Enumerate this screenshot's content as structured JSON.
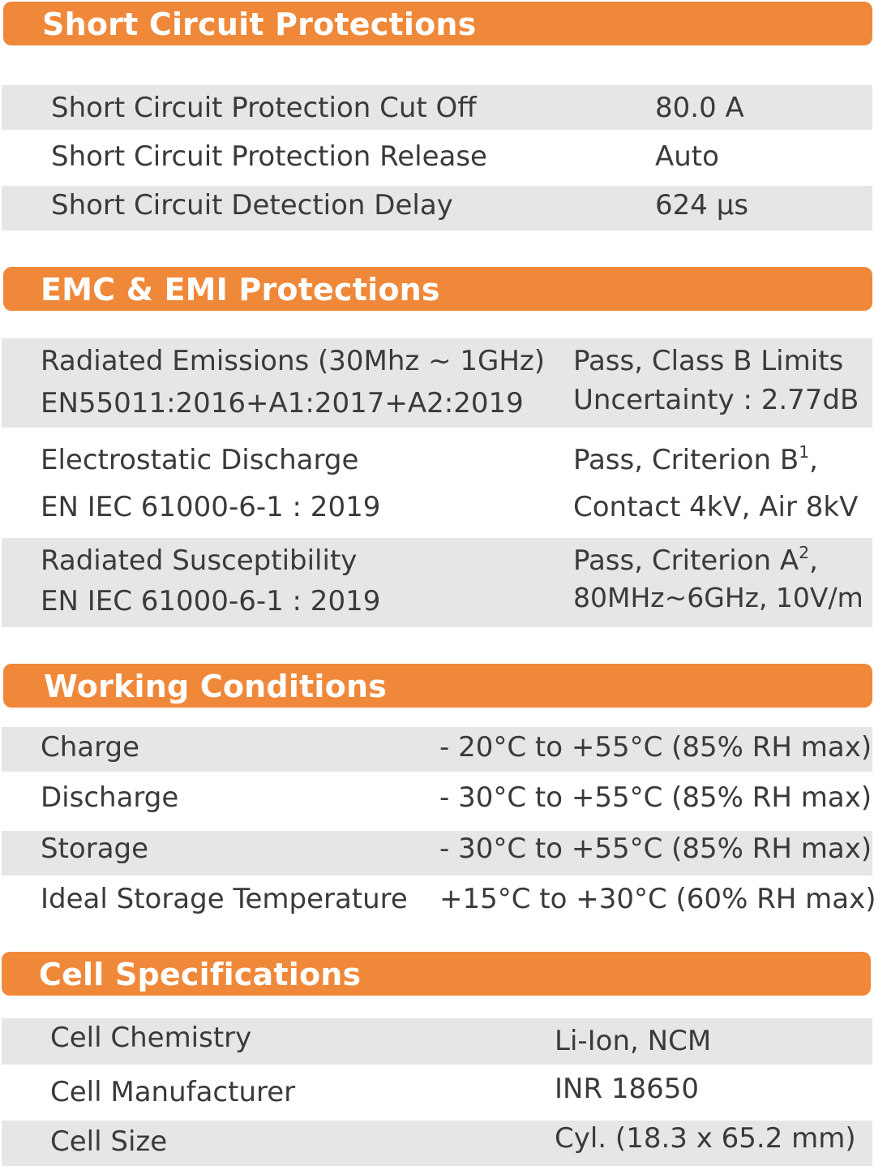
{
  "sections": {
    "short_circuit": {
      "title": "Short Circuit Protections",
      "rows": [
        {
          "label": "Short Circuit Protection Cut Off",
          "value": "80.0 A"
        },
        {
          "label": "Short Circuit Protection Release",
          "value": "Auto"
        },
        {
          "label": "Short Circuit Detection Delay",
          "value": "624 µs"
        }
      ]
    },
    "emc": {
      "title": "EMC & EMI Protections",
      "rows": [
        {
          "label1": "Radiated Emissions (30Mhz ~ 1GHz)",
          "label2": "EN55011:2016+A1:2017+A2:2019",
          "value1": "Pass, Class B Limits",
          "value2": "Uncertainty : 2.77dB"
        },
        {
          "label1": "Electrostatic Discharge",
          "label2": "EN IEC 61000-6-1 : 2019",
          "value1": "Pass, Criterion B",
          "value1_sup": "1",
          "value1_tail": ",",
          "value2": "Contact 4kV, Air 8kV"
        },
        {
          "label1": "Radiated Susceptibility",
          "label2": "EN IEC 61000-6-1 : 2019",
          "value1": "Pass, Criterion A",
          "value1_sup": "2",
          "value1_tail": ",",
          "value2": "80MHz~6GHz, 10V/m"
        }
      ]
    },
    "working": {
      "title": "Working Conditions",
      "rows": [
        {
          "label": "Charge",
          "value": "- 20°C to +55°C (85% RH max)"
        },
        {
          "label": "Discharge",
          "value": "- 30°C to +55°C (85% RH max)"
        },
        {
          "label": "Storage",
          "value": "- 30°C to +55°C (85% RH max)"
        },
        {
          "label": "Ideal Storage Temperature",
          "value": "+15°C to +30°C (60% RH max)"
        }
      ]
    },
    "cell": {
      "title": "Cell Specifications",
      "rows": [
        {
          "label": "Cell Chemistry",
          "value": "Li-Ion, NCM"
        },
        {
          "label": "Cell Manufacturer",
          "value": "INR 18650"
        },
        {
          "label": "Cell Size",
          "value": "Cyl. (18.3 x 65.2 mm)"
        }
      ]
    }
  },
  "colors": {
    "header_orange": "#f0883a",
    "row_shade": "#e6e6e7",
    "text": "#3a3a3a"
  }
}
